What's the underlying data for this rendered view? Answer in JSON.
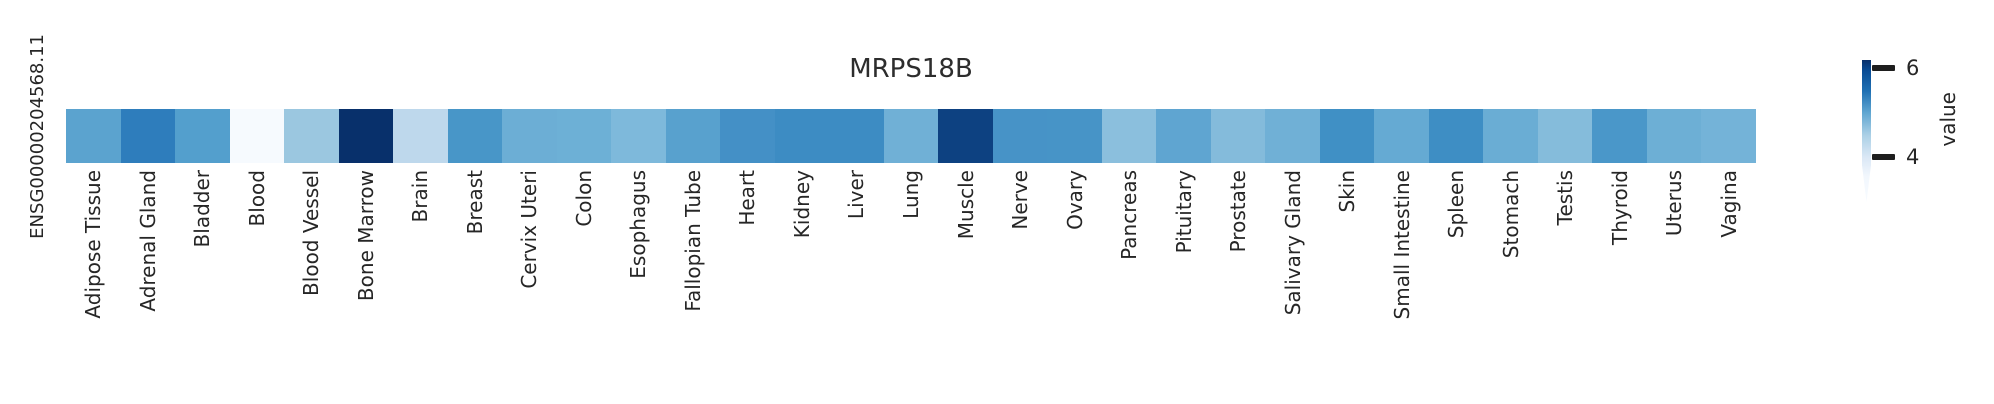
{
  "figure": {
    "title": "MRPS18B",
    "y_axis_label": "ENSG00000204568.11"
  },
  "colorbar": {
    "label": "value",
    "tick_top": "6",
    "tick_bottom": "4"
  },
  "chart_data": {
    "type": "heatmap",
    "title": "MRPS18B",
    "rows": [
      "ENSG00000204568.11"
    ],
    "categories": [
      "Adipose Tissue",
      "Adrenal Gland",
      "Bladder",
      "Blood",
      "Blood Vessel",
      "Bone Marrow",
      "Brain",
      "Breast",
      "Cervix Uteri",
      "Colon",
      "Esophagus",
      "Fallopian Tube",
      "Heart",
      "Kidney",
      "Liver",
      "Lung",
      "Muscle",
      "Nerve",
      "Ovary",
      "Pancreas",
      "Pituitary",
      "Prostate",
      "Salivary Gland",
      "Skin",
      "Small Intestine",
      "Spleen",
      "Stomach",
      "Testis",
      "Thyroid",
      "Uterus",
      "Vagina"
    ],
    "series": [
      {
        "name": "ENSG00000204568.11",
        "values_estimated": [
          5.0,
          5.4,
          5.1,
          3.6,
          4.6,
          6.2,
          4.3,
          5.2,
          4.9,
          4.9,
          4.8,
          5.1,
          5.2,
          5.3,
          5.3,
          4.9,
          6.1,
          5.2,
          5.2,
          4.7,
          5.0,
          4.8,
          4.9,
          5.3,
          5.0,
          5.3,
          4.9,
          4.7,
          5.2,
          4.9,
          4.8
        ]
      }
    ],
    "cell_colors": [
      "#5ba3cf",
      "#2e7dbc",
      "#539fcd",
      "#f6fafe",
      "#9bc7e0",
      "#08306b",
      "#bed8ec",
      "#4896c8",
      "#6caed5",
      "#6db0d6",
      "#7eb9db",
      "#58a1ce",
      "#4490c6",
      "#3d8cc3",
      "#3d8cc3",
      "#70b0d6",
      "#0d4181",
      "#4793c7",
      "#4794c7",
      "#8bbfdd",
      "#5fa5d1",
      "#84bbdb",
      "#70b0d6",
      "#4090c5",
      "#65aad3",
      "#3e8ec4",
      "#6aadd4",
      "#85bcdb",
      "#4a97c9",
      "#6dafd5",
      "#74b3d8"
    ],
    "colorbar": {
      "label": "value",
      "ticks": [
        4,
        6
      ],
      "colormap": "Blues",
      "extend": "min",
      "approx_value_range": [
        3.6,
        6.25
      ]
    },
    "legend_position": "right",
    "grid": false,
    "background": "#ffffff"
  }
}
